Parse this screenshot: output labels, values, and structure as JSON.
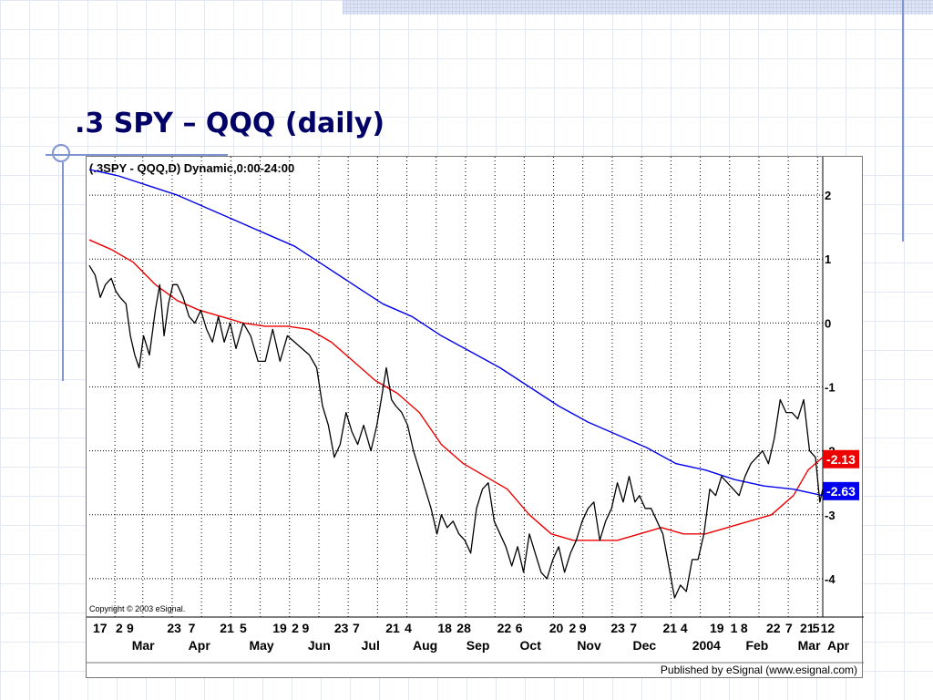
{
  "slide": {
    "title": ".3 SPY – QQQ (daily)"
  },
  "chart_data": {
    "type": "line",
    "title": "(.3SPY - QQQ,D) Dynamic,0:00-24:00",
    "copyright": "Copyright © 2003 eSignal.",
    "footer": "Published by eSignal (www.esignal.com)",
    "y_axis": {
      "position": "right",
      "range": [
        -4.6,
        2.6
      ],
      "ticks": [
        2,
        1,
        0,
        -1,
        -2,
        -3,
        -4
      ],
      "tick_labels": [
        "2",
        "1",
        "0",
        "-1",
        "-2",
        "-3",
        "-4"
      ]
    },
    "x_axis": {
      "range": [
        0,
        1
      ],
      "day_labels": [
        {
          "t": 0.005,
          "label": "17"
        },
        {
          "t": 0.036,
          "label": "2"
        },
        {
          "t": 0.051,
          "label": "9"
        },
        {
          "t": 0.106,
          "label": "23"
        },
        {
          "t": 0.135,
          "label": "7"
        },
        {
          "t": 0.178,
          "label": "21"
        },
        {
          "t": 0.205,
          "label": "5"
        },
        {
          "t": 0.25,
          "label": "19"
        },
        {
          "t": 0.276,
          "label": "2"
        },
        {
          "t": 0.29,
          "label": "9"
        },
        {
          "t": 0.334,
          "label": "23"
        },
        {
          "t": 0.359,
          "label": "7"
        },
        {
          "t": 0.404,
          "label": "21"
        },
        {
          "t": 0.43,
          "label": "4"
        },
        {
          "t": 0.475,
          "label": "18"
        },
        {
          "t": 0.501,
          "label": "28"
        },
        {
          "t": 0.556,
          "label": "22"
        },
        {
          "t": 0.581,
          "label": "6"
        },
        {
          "t": 0.627,
          "label": "20"
        },
        {
          "t": 0.654,
          "label": "2"
        },
        {
          "t": 0.668,
          "label": "9"
        },
        {
          "t": 0.711,
          "label": "23"
        },
        {
          "t": 0.737,
          "label": "7"
        },
        {
          "t": 0.782,
          "label": "21"
        },
        {
          "t": 0.806,
          "label": "4"
        },
        {
          "t": 0.846,
          "label": "19"
        },
        {
          "t": 0.874,
          "label": "1"
        },
        {
          "t": 0.888,
          "label": "8"
        },
        {
          "t": 0.923,
          "label": "22"
        },
        {
          "t": 0.949,
          "label": "7"
        },
        {
          "t": 0.969,
          "label": "21"
        },
        {
          "t": 0.986,
          "label": "5"
        },
        {
          "t": 0.997,
          "label": "12"
        }
      ],
      "month_labels": [
        {
          "t": 0.058,
          "label": "Mar"
        },
        {
          "t": 0.135,
          "label": "Apr"
        },
        {
          "t": 0.218,
          "label": "May"
        },
        {
          "t": 0.298,
          "label": "Jun"
        },
        {
          "t": 0.371,
          "label": "Jul"
        },
        {
          "t": 0.441,
          "label": "Aug"
        },
        {
          "t": 0.514,
          "label": "Sep"
        },
        {
          "t": 0.587,
          "label": "Oct"
        },
        {
          "t": 0.665,
          "label": "Nov"
        },
        {
          "t": 0.741,
          "label": "Dec"
        },
        {
          "t": 0.822,
          "label": "2004"
        },
        {
          "t": 0.895,
          "label": "Feb"
        },
        {
          "t": 0.966,
          "label": "Mar"
        },
        {
          "t": 1.045,
          "label": "Apr"
        }
      ],
      "vertical_grid": [
        0.035,
        0.073,
        0.113,
        0.153,
        0.193,
        0.233,
        0.273,
        0.313,
        0.353,
        0.393,
        0.433,
        0.473,
        0.513,
        0.553,
        0.593,
        0.633,
        0.673,
        0.713,
        0.753,
        0.793,
        0.833,
        0.873,
        0.913,
        0.953,
        0.993
      ]
    },
    "grid": true,
    "series": [
      {
        "name": "",
        "role": "price",
        "color": "#000000",
        "points": [
          [
            0.0,
            0.9
          ],
          [
            0.008,
            0.75
          ],
          [
            0.015,
            0.4
          ],
          [
            0.022,
            0.6
          ],
          [
            0.03,
            0.7
          ],
          [
            0.036,
            0.5
          ],
          [
            0.042,
            0.4
          ],
          [
            0.05,
            0.3
          ],
          [
            0.056,
            -0.2
          ],
          [
            0.062,
            -0.5
          ],
          [
            0.068,
            -0.7
          ],
          [
            0.074,
            -0.2
          ],
          [
            0.082,
            -0.5
          ],
          [
            0.09,
            0.2
          ],
          [
            0.096,
            0.6
          ],
          [
            0.102,
            -0.2
          ],
          [
            0.108,
            0.3
          ],
          [
            0.114,
            0.6
          ],
          [
            0.12,
            0.6
          ],
          [
            0.128,
            0.4
          ],
          [
            0.136,
            0.1
          ],
          [
            0.144,
            0.0
          ],
          [
            0.152,
            0.2
          ],
          [
            0.16,
            -0.1
          ],
          [
            0.168,
            -0.3
          ],
          [
            0.176,
            0.1
          ],
          [
            0.184,
            -0.3
          ],
          [
            0.192,
            0.0
          ],
          [
            0.2,
            -0.4
          ],
          [
            0.21,
            0.0
          ],
          [
            0.22,
            -0.2
          ],
          [
            0.23,
            -0.6
          ],
          [
            0.24,
            -0.6
          ],
          [
            0.25,
            -0.1
          ],
          [
            0.26,
            -0.6
          ],
          [
            0.27,
            -0.2
          ],
          [
            0.28,
            -0.3
          ],
          [
            0.29,
            -0.4
          ],
          [
            0.3,
            -0.5
          ],
          [
            0.31,
            -0.7
          ],
          [
            0.318,
            -1.3
          ],
          [
            0.326,
            -1.6
          ],
          [
            0.334,
            -2.1
          ],
          [
            0.342,
            -1.9
          ],
          [
            0.35,
            -1.4
          ],
          [
            0.358,
            -1.7
          ],
          [
            0.366,
            -1.9
          ],
          [
            0.374,
            -1.6
          ],
          [
            0.384,
            -2.0
          ],
          [
            0.392,
            -1.6
          ],
          [
            0.398,
            -1.2
          ],
          [
            0.405,
            -0.7
          ],
          [
            0.412,
            -1.2
          ],
          [
            0.418,
            -1.3
          ],
          [
            0.426,
            -1.4
          ],
          [
            0.434,
            -1.6
          ],
          [
            0.442,
            -2.0
          ],
          [
            0.45,
            -2.3
          ],
          [
            0.458,
            -2.6
          ],
          [
            0.466,
            -2.9
          ],
          [
            0.474,
            -3.3
          ],
          [
            0.48,
            -3.0
          ],
          [
            0.488,
            -3.2
          ],
          [
            0.496,
            -3.1
          ],
          [
            0.504,
            -3.3
          ],
          [
            0.512,
            -3.4
          ],
          [
            0.52,
            -3.6
          ],
          [
            0.528,
            -2.9
          ],
          [
            0.536,
            -2.6
          ],
          [
            0.544,
            -2.5
          ],
          [
            0.552,
            -3.1
          ],
          [
            0.56,
            -3.3
          ],
          [
            0.568,
            -3.5
          ],
          [
            0.576,
            -3.8
          ],
          [
            0.584,
            -3.5
          ],
          [
            0.592,
            -3.9
          ],
          [
            0.6,
            -3.3
          ],
          [
            0.608,
            -3.6
          ],
          [
            0.616,
            -3.9
          ],
          [
            0.624,
            -4.0
          ],
          [
            0.632,
            -3.7
          ],
          [
            0.64,
            -3.5
          ],
          [
            0.648,
            -3.9
          ],
          [
            0.656,
            -3.6
          ],
          [
            0.664,
            -3.4
          ],
          [
            0.672,
            -3.1
          ],
          [
            0.68,
            -2.9
          ],
          [
            0.688,
            -2.8
          ],
          [
            0.696,
            -3.4
          ],
          [
            0.704,
            -3.1
          ],
          [
            0.712,
            -2.9
          ],
          [
            0.72,
            -2.5
          ],
          [
            0.728,
            -2.8
          ],
          [
            0.736,
            -2.4
          ],
          [
            0.744,
            -2.8
          ],
          [
            0.75,
            -2.7
          ],
          [
            0.758,
            -2.9
          ],
          [
            0.766,
            -2.9
          ],
          [
            0.774,
            -3.1
          ],
          [
            0.782,
            -3.3
          ],
          [
            0.79,
            -3.8
          ],
          [
            0.798,
            -4.3
          ],
          [
            0.806,
            -4.1
          ],
          [
            0.814,
            -4.2
          ],
          [
            0.822,
            -3.7
          ],
          [
            0.83,
            -3.7
          ],
          [
            0.838,
            -3.3
          ],
          [
            0.846,
            -2.6
          ],
          [
            0.854,
            -2.7
          ],
          [
            0.862,
            -2.4
          ],
          [
            0.87,
            -2.5
          ],
          [
            0.878,
            -2.6
          ],
          [
            0.886,
            -2.7
          ],
          [
            0.894,
            -2.4
          ],
          [
            0.902,
            -2.2
          ],
          [
            0.91,
            -2.1
          ],
          [
            0.918,
            -2.0
          ],
          [
            0.926,
            -2.2
          ],
          [
            0.934,
            -1.8
          ],
          [
            0.942,
            -1.2
          ],
          [
            0.95,
            -1.4
          ],
          [
            0.958,
            -1.4
          ],
          [
            0.966,
            -1.5
          ],
          [
            0.974,
            -1.2
          ],
          [
            0.982,
            -2.0
          ],
          [
            0.99,
            -2.1
          ],
          [
            0.996,
            -2.8
          ],
          [
            1.0,
            -2.6
          ]
        ]
      },
      {
        "name": "",
        "role": "short moving average",
        "color": "#ee0000",
        "last_value": "-2.13",
        "points": [
          [
            0.0,
            1.3
          ],
          [
            0.03,
            1.15
          ],
          [
            0.06,
            0.95
          ],
          [
            0.09,
            0.6
          ],
          [
            0.12,
            0.35
          ],
          [
            0.15,
            0.2
          ],
          [
            0.18,
            0.1
          ],
          [
            0.21,
            0.0
          ],
          [
            0.24,
            -0.05
          ],
          [
            0.27,
            -0.05
          ],
          [
            0.3,
            -0.1
          ],
          [
            0.33,
            -0.3
          ],
          [
            0.36,
            -0.6
          ],
          [
            0.39,
            -0.9
          ],
          [
            0.42,
            -1.1
          ],
          [
            0.45,
            -1.4
          ],
          [
            0.48,
            -1.9
          ],
          [
            0.51,
            -2.2
          ],
          [
            0.54,
            -2.4
          ],
          [
            0.57,
            -2.6
          ],
          [
            0.6,
            -3.0
          ],
          [
            0.63,
            -3.3
          ],
          [
            0.66,
            -3.4
          ],
          [
            0.69,
            -3.4
          ],
          [
            0.72,
            -3.4
          ],
          [
            0.75,
            -3.3
          ],
          [
            0.78,
            -3.2
          ],
          [
            0.81,
            -3.3
          ],
          [
            0.84,
            -3.3
          ],
          [
            0.87,
            -3.2
          ],
          [
            0.9,
            -3.1
          ],
          [
            0.93,
            -3.0
          ],
          [
            0.96,
            -2.7
          ],
          [
            0.98,
            -2.3
          ],
          [
            1.0,
            -2.1
          ]
        ]
      },
      {
        "name": "",
        "role": "long moving average",
        "color": "#0000ee",
        "last_value": "-2.63",
        "points": [
          [
            0.0,
            2.4
          ],
          [
            0.04,
            2.3
          ],
          [
            0.08,
            2.15
          ],
          [
            0.12,
            2.0
          ],
          [
            0.16,
            1.8
          ],
          [
            0.2,
            1.6
          ],
          [
            0.24,
            1.4
          ],
          [
            0.28,
            1.2
          ],
          [
            0.32,
            0.9
          ],
          [
            0.36,
            0.6
          ],
          [
            0.4,
            0.3
          ],
          [
            0.44,
            0.1
          ],
          [
            0.48,
            -0.2
          ],
          [
            0.52,
            -0.45
          ],
          [
            0.56,
            -0.7
          ],
          [
            0.6,
            -1.0
          ],
          [
            0.64,
            -1.3
          ],
          [
            0.68,
            -1.55
          ],
          [
            0.72,
            -1.75
          ],
          [
            0.76,
            -1.95
          ],
          [
            0.8,
            -2.2
          ],
          [
            0.84,
            -2.3
          ],
          [
            0.88,
            -2.45
          ],
          [
            0.92,
            -2.55
          ],
          [
            0.96,
            -2.6
          ],
          [
            1.0,
            -2.7
          ]
        ]
      }
    ]
  }
}
